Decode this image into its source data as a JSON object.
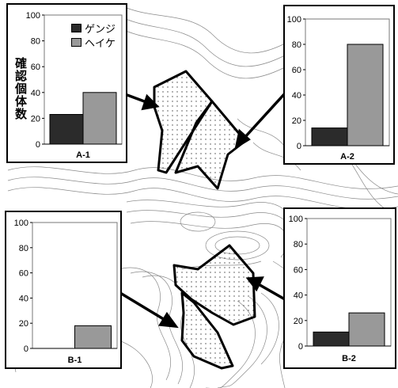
{
  "colors": {
    "genji": "#2b2b2b",
    "heike": "#999999"
  },
  "ylabel": "確認個体数",
  "legend": {
    "genji": "ゲンジ",
    "heike": "ヘイケ"
  },
  "chart_data": [
    {
      "type": "bar",
      "id": "A-1",
      "categories": [
        "ゲンジ",
        "ヘイケ"
      ],
      "values": [
        23,
        40
      ],
      "xlabel": "A-1",
      "ylabel": "確認個体数",
      "ylim": [
        0,
        100
      ],
      "yticks": [
        0,
        20,
        40,
        60,
        80,
        100
      ],
      "legend": "top-right"
    },
    {
      "type": "bar",
      "id": "A-2",
      "categories": [
        "ゲンジ",
        "ヘイケ"
      ],
      "values": [
        14,
        80
      ],
      "xlabel": "A-2",
      "ylim": [
        0,
        100
      ],
      "yticks": [
        0,
        20,
        40,
        60,
        80,
        100
      ]
    },
    {
      "type": "bar",
      "id": "B-1",
      "categories": [
        "ゲンジ",
        "ヘイケ"
      ],
      "values": [
        0,
        18
      ],
      "xlabel": "B-1",
      "ylim": [
        0,
        100
      ],
      "yticks": [
        0,
        20,
        40,
        60,
        80,
        100
      ]
    },
    {
      "type": "bar",
      "id": "B-2",
      "categories": [
        "ゲンジ",
        "ヘイケ"
      ],
      "values": [
        11,
        26
      ],
      "xlabel": "B-2",
      "ylim": [
        0,
        100
      ],
      "yticks": [
        0,
        20,
        40,
        60,
        80,
        100
      ]
    }
  ]
}
